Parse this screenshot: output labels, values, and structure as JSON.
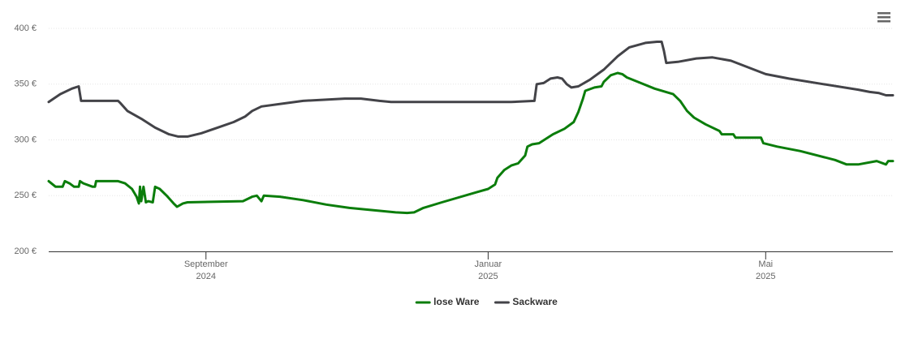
{
  "chart_data": {
    "type": "line",
    "xlim": [
      0,
      365
    ],
    "xticks": [
      {
        "value": 68,
        "label": [
          "September",
          "2024"
        ]
      },
      {
        "value": 190,
        "label": [
          "Januar",
          "2025"
        ]
      },
      {
        "value": 310,
        "label": [
          "Mai",
          "2025"
        ]
      }
    ],
    "ylim": [
      200,
      400
    ],
    "yticks": [
      {
        "value": 200,
        "label": "200 €"
      },
      {
        "value": 250,
        "label": "250 €"
      },
      {
        "value": 300,
        "label": "300 €"
      },
      {
        "value": 350,
        "label": "350 €"
      },
      {
        "value": 400,
        "label": "400 €"
      }
    ],
    "grid": true,
    "legend": "bottom",
    "series": [
      {
        "name": "lose Ware",
        "color": "#0b7d0b",
        "x": [
          0,
          3,
          6,
          7,
          9,
          11,
          13,
          13.5,
          15,
          19,
          20,
          20.5,
          30,
          33,
          36,
          38,
          39,
          39.5,
          40,
          41,
          42,
          43,
          45,
          46,
          48,
          51,
          54,
          55.5,
          58,
          60,
          84,
          88,
          90,
          92,
          93,
          100,
          110,
          120,
          130,
          140,
          150,
          155,
          158,
          162,
          170,
          185,
          190,
          193,
          194,
          197,
          200,
          203,
          206,
          207,
          209,
          212,
          218,
          223,
          227,
          229,
          231,
          232,
          236,
          239,
          240,
          243,
          246,
          248,
          250,
          256,
          262,
          270,
          273,
          276,
          279,
          284,
          290,
          291,
          296,
          297,
          308,
          309,
          315,
          325,
          340,
          345,
          350,
          358,
          362,
          363,
          365
        ],
        "values": [
          263,
          258,
          258,
          263,
          261,
          258,
          258,
          263,
          261,
          258,
          258,
          263,
          263,
          261,
          256,
          249,
          243,
          258,
          245,
          258,
          244,
          245,
          244,
          258,
          256,
          250,
          243,
          240,
          243,
          244,
          245,
          249,
          250,
          245,
          250,
          249,
          246,
          242,
          239,
          237,
          235,
          234.5,
          235,
          239,
          244,
          253,
          256,
          260,
          266,
          273,
          277,
          279,
          286,
          294,
          296,
          297,
          305,
          310,
          316,
          325,
          337,
          344,
          347,
          348,
          352,
          358,
          360,
          359,
          356,
          351,
          346,
          341,
          335,
          326,
          320,
          314,
          308,
          305,
          305,
          302,
          302,
          297,
          294,
          290,
          282,
          278,
          278,
          281,
          278,
          281,
          281
        ]
      },
      {
        "name": "Sackware",
        "color": "#434348",
        "x": [
          0,
          5,
          10,
          13,
          14,
          30,
          31,
          34,
          40,
          46,
          52,
          56,
          60,
          66,
          73,
          80,
          85,
          88,
          92,
          110,
          128,
          135,
          143,
          148,
          180,
          200,
          210,
          211,
          214,
          217,
          220,
          222,
          224,
          226,
          229,
          234,
          240,
          246,
          251,
          258,
          263,
          265,
          266,
          267,
          272,
          280,
          287,
          295,
          305,
          310,
          320,
          335,
          350,
          355,
          359,
          362,
          365
        ],
        "values": [
          334,
          341,
          346,
          348,
          335,
          335,
          333,
          326,
          319,
          311,
          305,
          303,
          303,
          306,
          311,
          316,
          321,
          326,
          330,
          335,
          337,
          337,
          335,
          334,
          334,
          334,
          335,
          350,
          351,
          355,
          356,
          355,
          350,
          347,
          348,
          354,
          363,
          375,
          383,
          387,
          388,
          388,
          380,
          369,
          370,
          373,
          374,
          371,
          363,
          359,
          355,
          350,
          345,
          343,
          342,
          340,
          340
        ]
      }
    ]
  }
}
